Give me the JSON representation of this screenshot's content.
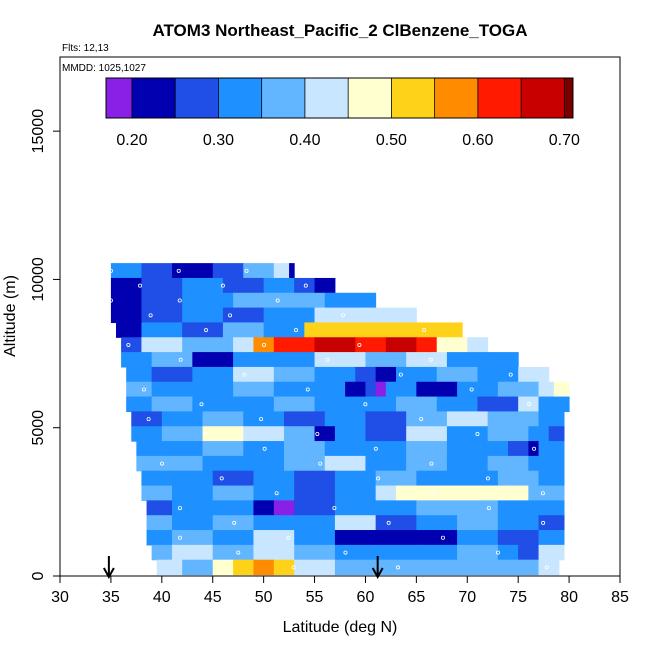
{
  "chart_data": {
    "type": "heatmap",
    "title": "ATOM3 Northeast_Pacific_2 ClBenzene_TOGA",
    "info_lines": [
      "Flts: 12,13",
      "MMDD: 1025,1027"
    ],
    "xlabel": "Latitude (deg N)",
    "ylabel": "Altitude (m)",
    "xlim": [
      30,
      85
    ],
    "ylim": [
      0,
      17500
    ],
    "x_ticks": [
      30,
      35,
      40,
      45,
      50,
      55,
      60,
      65,
      70,
      75,
      80,
      85
    ],
    "y_ticks": [
      0,
      5000,
      10000,
      15000
    ],
    "colorbar": {
      "range": [
        0.17,
        0.71
      ],
      "ticks": [
        0.2,
        0.3,
        0.4,
        0.5,
        0.6,
        0.7
      ],
      "tick_labels": [
        "0.20",
        "0.30",
        "0.40",
        "0.50",
        "0.60",
        "0.70"
      ],
      "bin_edges": [
        0.17,
        0.2,
        0.25,
        0.3,
        0.35,
        0.4,
        0.45,
        0.5,
        0.55,
        0.6,
        0.65,
        0.7,
        0.71
      ],
      "colors": [
        "#8a20e6",
        "#0000b0",
        "#1f4fe6",
        "#1e90ff",
        "#62b6ff",
        "#c8e6ff",
        "#ffffd0",
        "#ffd21a",
        "#ff8c00",
        "#ff1a00",
        "#c80000",
        "#7a0000"
      ]
    },
    "arrows_latitude": [
      34.8,
      61.2
    ],
    "bands": [
      {
        "alt": 10300,
        "lat_min": 35,
        "lat_max": 53,
        "segs": [
          [
            35,
            0.31
          ],
          [
            38,
            0.27
          ],
          [
            41,
            0.23
          ],
          [
            45,
            0.28
          ],
          [
            48,
            0.35
          ],
          [
            51,
            0.43
          ],
          [
            52.5,
            0.22
          ]
        ]
      },
      {
        "alt": 9800,
        "lat_min": 35,
        "lat_max": 57,
        "segs": [
          [
            35,
            0.21
          ],
          [
            38,
            0.26
          ],
          [
            42,
            0.3
          ],
          [
            46,
            0.27
          ],
          [
            50,
            0.34
          ],
          [
            53,
            0.28
          ],
          [
            55,
            0.21
          ]
        ]
      },
      {
        "alt": 9300,
        "lat_min": 35,
        "lat_max": 61,
        "segs": [
          [
            35,
            0.21
          ],
          [
            38,
            0.29
          ],
          [
            42,
            0.33
          ],
          [
            47,
            0.35
          ],
          [
            52,
            0.38
          ],
          [
            56,
            0.31
          ]
        ]
      },
      {
        "alt": 8800,
        "lat_min": 35,
        "lat_max": 65,
        "segs": [
          [
            35,
            0.21
          ],
          [
            38,
            0.27
          ],
          [
            42,
            0.31
          ],
          [
            46,
            0.28
          ],
          [
            50,
            0.33
          ],
          [
            53,
            0.31
          ],
          [
            55,
            0.43
          ],
          [
            60,
            0.4
          ]
        ]
      },
      {
        "alt": 8300,
        "lat_min": 35.5,
        "lat_max": 69.5,
        "segs": [
          [
            35.5,
            0.23
          ],
          [
            38,
            0.3
          ],
          [
            42,
            0.28
          ],
          [
            46,
            0.36
          ],
          [
            50,
            0.33
          ],
          [
            54,
            0.52
          ],
          [
            60,
            0.52
          ],
          [
            66,
            0.53
          ]
        ]
      },
      {
        "alt": 7800,
        "lat_min": 36,
        "lat_max": 72,
        "segs": [
          [
            36,
            0.26
          ],
          [
            38,
            0.4
          ],
          [
            42,
            0.35
          ],
          [
            47,
            0.44
          ],
          [
            49,
            0.55
          ],
          [
            51,
            0.62
          ],
          [
            53,
            0.6
          ],
          [
            55,
            0.65
          ],
          [
            59,
            0.64
          ],
          [
            62,
            0.66
          ],
          [
            65,
            0.62
          ],
          [
            67,
            0.45
          ],
          [
            70,
            0.4
          ]
        ]
      },
      {
        "alt": 7300,
        "lat_min": 36,
        "lat_max": 75,
        "segs": [
          [
            36,
            0.3
          ],
          [
            39,
            0.35
          ],
          [
            43,
            0.24
          ],
          [
            47,
            0.31
          ],
          [
            51,
            0.33
          ],
          [
            55,
            0.43
          ],
          [
            60,
            0.38
          ],
          [
            64,
            0.43
          ],
          [
            68,
            0.31
          ],
          [
            72,
            0.34
          ]
        ]
      },
      {
        "alt": 6800,
        "lat_min": 36.5,
        "lat_max": 78,
        "segs": [
          [
            36.5,
            0.33
          ],
          [
            39,
            0.28
          ],
          [
            43,
            0.33
          ],
          [
            47,
            0.4
          ],
          [
            51,
            0.36
          ],
          [
            55,
            0.3
          ],
          [
            59,
            0.25
          ],
          [
            61,
            0.2
          ],
          [
            63,
            0.3
          ],
          [
            67,
            0.36
          ],
          [
            71,
            0.33
          ],
          [
            75,
            0.4
          ]
        ]
      },
      {
        "alt": 6300,
        "lat_min": 36.5,
        "lat_max": 80,
        "segs": [
          [
            36.5,
            0.35
          ],
          [
            39,
            0.3
          ],
          [
            43,
            0.33
          ],
          [
            47,
            0.36
          ],
          [
            51,
            0.31
          ],
          [
            55,
            0.34
          ],
          [
            58,
            0.21
          ],
          [
            60,
            0.26
          ],
          [
            61,
            0.18
          ],
          [
            62,
            0.3
          ],
          [
            65,
            0.23
          ],
          [
            69,
            0.33
          ],
          [
            73,
            0.36
          ],
          [
            77,
            0.43
          ],
          [
            78.5,
            0.48
          ]
        ]
      },
      {
        "alt": 5800,
        "lat_min": 36.5,
        "lat_max": 80,
        "segs": [
          [
            36.5,
            0.31
          ],
          [
            39,
            0.35
          ],
          [
            43,
            0.3
          ],
          [
            47,
            0.33
          ],
          [
            51,
            0.38
          ],
          [
            55,
            0.33
          ],
          [
            59,
            0.3
          ],
          [
            63,
            0.36
          ],
          [
            67,
            0.33
          ],
          [
            71,
            0.28
          ],
          [
            75,
            0.4
          ],
          [
            77,
            0.31
          ]
        ]
      },
      {
        "alt": 5300,
        "lat_min": 37,
        "lat_max": 79.5,
        "segs": [
          [
            37,
            0.29
          ],
          [
            40,
            0.33
          ],
          [
            44,
            0.36
          ],
          [
            48,
            0.3
          ],
          [
            52,
            0.27
          ],
          [
            56,
            0.33
          ],
          [
            60,
            0.27
          ],
          [
            64,
            0.36
          ],
          [
            68,
            0.4
          ],
          [
            72,
            0.38
          ],
          [
            76,
            0.35
          ],
          [
            77,
            0.32
          ]
        ]
      },
      {
        "alt": 4800,
        "lat_min": 37,
        "lat_max": 79.5,
        "segs": [
          [
            37,
            0.3
          ],
          [
            40,
            0.35
          ],
          [
            44,
            0.45
          ],
          [
            48,
            0.41
          ],
          [
            52,
            0.35
          ],
          [
            55,
            0.22
          ],
          [
            57,
            0.3
          ],
          [
            60,
            0.26
          ],
          [
            64,
            0.4
          ],
          [
            68,
            0.33
          ],
          [
            72,
            0.37
          ],
          [
            76,
            0.3
          ],
          [
            78,
            0.27
          ]
        ]
      },
      {
        "alt": 4300,
        "lat_min": 37.5,
        "lat_max": 79.5,
        "segs": [
          [
            37.5,
            0.33
          ],
          [
            40,
            0.31
          ],
          [
            44,
            0.35
          ],
          [
            48,
            0.3
          ],
          [
            52,
            0.38
          ],
          [
            56,
            0.33
          ],
          [
            60,
            0.31
          ],
          [
            64,
            0.38
          ],
          [
            68,
            0.33
          ],
          [
            72,
            0.3
          ],
          [
            74,
            0.28
          ],
          [
            76,
            0.2
          ],
          [
            77,
            0.31
          ]
        ]
      },
      {
        "alt": 3800,
        "lat_min": 37.5,
        "lat_max": 79.5,
        "segs": [
          [
            37.5,
            0.35
          ],
          [
            40,
            0.38
          ],
          [
            44,
            0.33
          ],
          [
            48,
            0.31
          ],
          [
            52,
            0.36
          ],
          [
            56,
            0.4
          ],
          [
            60,
            0.33
          ],
          [
            64,
            0.35
          ],
          [
            68,
            0.31
          ],
          [
            72,
            0.38
          ],
          [
            76,
            0.33
          ]
        ]
      },
      {
        "alt": 3300,
        "lat_min": 38,
        "lat_max": 79.5,
        "segs": [
          [
            38,
            0.3
          ],
          [
            41,
            0.33
          ],
          [
            45,
            0.28
          ],
          [
            49,
            0.31
          ],
          [
            53,
            0.26
          ],
          [
            57,
            0.31
          ],
          [
            61,
            0.36
          ],
          [
            65,
            0.33
          ],
          [
            69,
            0.3
          ],
          [
            73,
            0.35
          ],
          [
            77,
            0.31
          ]
        ]
      },
      {
        "alt": 2800,
        "lat_min": 38,
        "lat_max": 79.5,
        "segs": [
          [
            38,
            0.36
          ],
          [
            41,
            0.31
          ],
          [
            45,
            0.35
          ],
          [
            49,
            0.33
          ],
          [
            53,
            0.28
          ],
          [
            57,
            0.31
          ],
          [
            61,
            0.44
          ],
          [
            63,
            0.47
          ],
          [
            69,
            0.49
          ],
          [
            74,
            0.45
          ],
          [
            76,
            0.36
          ]
        ]
      },
      {
        "alt": 2300,
        "lat_min": 38.5,
        "lat_max": 79.5,
        "segs": [
          [
            38.5,
            0.29
          ],
          [
            41,
            0.33
          ],
          [
            45,
            0.3
          ],
          [
            49,
            0.24
          ],
          [
            51,
            0.19
          ],
          [
            53,
            0.26
          ],
          [
            57,
            0.33
          ],
          [
            61,
            0.31
          ],
          [
            65,
            0.38
          ],
          [
            69,
            0.35
          ],
          [
            73,
            0.31
          ],
          [
            77,
            0.33
          ]
        ]
      },
      {
        "alt": 1800,
        "lat_min": 38.5,
        "lat_max": 79.5,
        "segs": [
          [
            38.5,
            0.35
          ],
          [
            41,
            0.3
          ],
          [
            45,
            0.36
          ],
          [
            49,
            0.31
          ],
          [
            53,
            0.33
          ],
          [
            57,
            0.4
          ],
          [
            61,
            0.27
          ],
          [
            65,
            0.33
          ],
          [
            69,
            0.36
          ],
          [
            73,
            0.3
          ],
          [
            77,
            0.28
          ]
        ]
      },
      {
        "alt": 1300,
        "lat_min": 38.5,
        "lat_max": 79.5,
        "segs": [
          [
            38.5,
            0.31
          ],
          [
            41,
            0.35
          ],
          [
            45,
            0.3
          ],
          [
            49,
            0.4
          ],
          [
            53,
            0.33
          ],
          [
            57,
            0.23
          ],
          [
            61,
            0.2
          ],
          [
            65,
            0.23
          ],
          [
            69,
            0.3
          ],
          [
            73,
            0.25
          ],
          [
            77,
            0.33
          ]
        ]
      },
      {
        "alt": 800,
        "lat_min": 39,
        "lat_max": 79.5,
        "segs": [
          [
            39,
            0.35
          ],
          [
            41,
            0.43
          ],
          [
            45,
            0.38
          ],
          [
            49,
            0.42
          ],
          [
            53,
            0.35
          ],
          [
            57,
            0.3
          ],
          [
            61,
            0.33
          ],
          [
            65,
            0.31
          ],
          [
            69,
            0.36
          ],
          [
            73,
            0.33
          ],
          [
            75,
            0.28
          ],
          [
            77,
            0.43
          ]
        ]
      },
      {
        "alt": 300,
        "lat_min": 39.5,
        "lat_max": 79,
        "segs": [
          [
            39.5,
            0.4
          ],
          [
            42,
            0.36
          ],
          [
            45,
            0.45
          ],
          [
            47,
            0.5
          ],
          [
            49,
            0.55
          ],
          [
            51,
            0.5
          ],
          [
            53,
            0.4
          ],
          [
            57,
            0.38
          ],
          [
            61,
            0.36
          ],
          [
            65,
            0.35
          ],
          [
            69,
            0.38
          ],
          [
            73,
            0.35
          ],
          [
            77,
            0.4
          ]
        ]
      }
    ]
  }
}
